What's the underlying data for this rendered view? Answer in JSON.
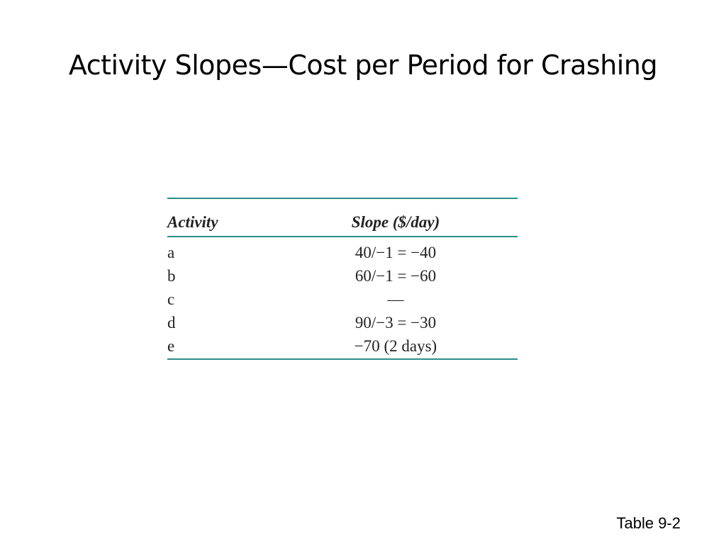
{
  "header": {
    "title": "Activity Slopes—Cost per Period for Crashing"
  },
  "table": {
    "columns": [
      "Activity",
      "Slope ($/day)"
    ],
    "rows": [
      [
        "a",
        "40/−1 = −40"
      ],
      [
        "b",
        "60/−1 = −60"
      ],
      [
        "c",
        "—"
      ],
      [
        "d",
        "90/−3 = −30"
      ],
      [
        "e",
        "−70 (2 days)"
      ]
    ]
  },
  "footer": {
    "caption": "Table 9-2"
  }
}
